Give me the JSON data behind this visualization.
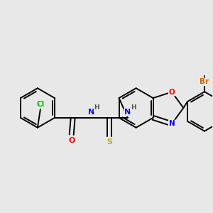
{
  "background_color": "#e8e8e8",
  "bond_color": "#000000",
  "atom_colors": {
    "Cl": "#00bb00",
    "O": "#ff0000",
    "N": "#0000ff",
    "S": "#ccaa00",
    "Br": "#cc6600",
    "C": "#000000",
    "H": "#555555"
  },
  "figsize": [
    3.0,
    3.0
  ],
  "dpi": 100
}
